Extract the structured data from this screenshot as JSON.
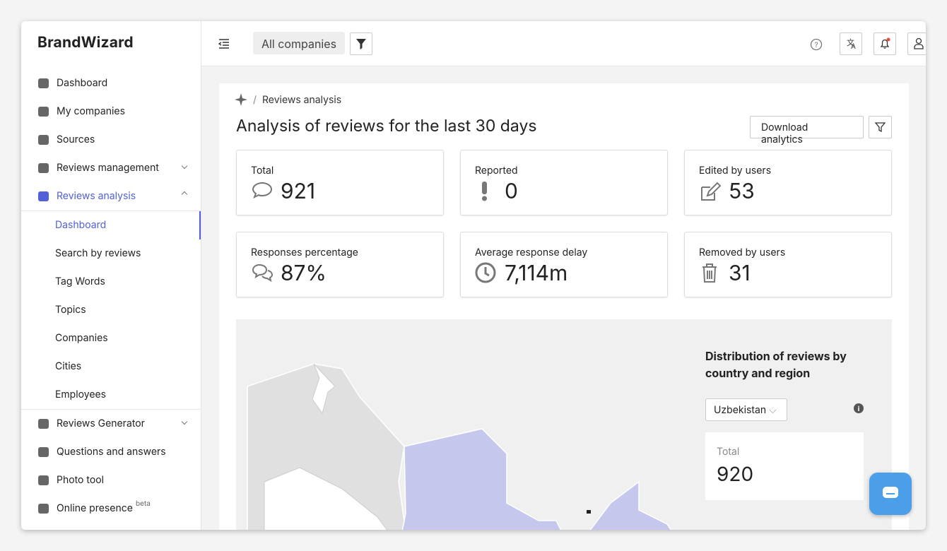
{
  "brand": "BrandWizard",
  "topbar": {
    "company_filter": "All companies"
  },
  "sidebar": {
    "items": [
      "Dashboard",
      "My companies",
      "Sources",
      "Reviews management",
      "Reviews analysis"
    ],
    "subitems": [
      "Dashboard",
      "Search by reviews",
      "Tag Words",
      "Topics",
      "Companies",
      "Cities",
      "Employees"
    ],
    "more_items": [
      "Reviews Generator",
      "Questions and answers",
      "Photo tool",
      "Online presence"
    ],
    "beta_badge": "beta"
  },
  "breadcrumb": "Reviews analysis",
  "title": "Analysis of reviews for the last 30 days",
  "download_button": "Download analytics",
  "stats": [
    {
      "label": "Total",
      "value": "921"
    },
    {
      "label": "Reported",
      "value": "0"
    },
    {
      "label": "Edited by users",
      "value": "53"
    },
    {
      "label": "Responses percentage",
      "value": "87%"
    },
    {
      "label": "Average response delay",
      "value": "7,114m"
    },
    {
      "label": "Removed by users",
      "value": "31"
    }
  ],
  "map_panel": {
    "title": "Distribution of reviews by country and region",
    "country": "Uzbekistan",
    "total_label": "Total",
    "total_value": "920"
  }
}
